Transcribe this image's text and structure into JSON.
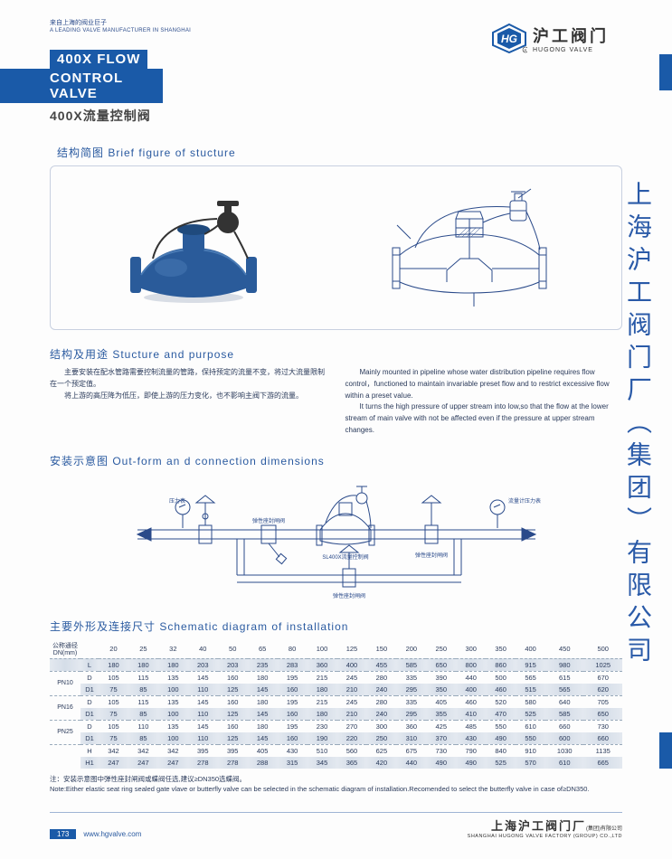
{
  "header": {
    "subtitle_cn": "来自上海的阀业巨子",
    "subtitle_en": "A LEADING VALVE MANUFACTURER IN SHANGHAI",
    "logo_cn": "沪工阀门",
    "logo_en": "HUGONG VALVE"
  },
  "title": {
    "line1": "400X FLOW",
    "line2": "CONTROL VALVE",
    "cn": "400X流量控制阀"
  },
  "sections": {
    "brief": "结构简图  Brief figure of stucture",
    "purpose": "结构及用途  Stucture and purpose",
    "outform": "安装示意图   Out-form an d connection dimensions",
    "schematic": "主要外形及连接尺寸   Schematic diagram of installation"
  },
  "purpose_text": {
    "cn1": "主要安装在配水管路需要控制流量的管路，保持预定的流量不变，将过大流量限制在一个预定值。",
    "cn2": "将上游的高压降为低压，即使上游的压力变化，也不影响主阀下游的流量。",
    "en1": "Mainly mounted in pipeline whose water distribution pipeline requires flow control，functioned to maintain invariable preset flow and to restrict excessive flow within a preset value.",
    "en2": "It turns the high pressure of upper stream into low,so that the flow at the lower stream of main valve with not be affected even if the pressure at upper stream changes."
  },
  "table": {
    "header_label": "公称通径\nDN(mm)",
    "sizes": [
      "20",
      "25",
      "32",
      "40",
      "50",
      "65",
      "80",
      "100",
      "125",
      "150",
      "200",
      "250",
      "300",
      "350",
      "400",
      "450",
      "500"
    ],
    "groups": [
      {
        "pn": "",
        "rows": [
          {
            "k": "L",
            "shade": true,
            "v": [
              "180",
              "180",
              "180",
              "203",
              "203",
              "235",
              "283",
              "360",
              "400",
              "455",
              "585",
              "650",
              "800",
              "860",
              "915",
              "980",
              "1025"
            ]
          }
        ]
      },
      {
        "pn": "PN10",
        "rows": [
          {
            "k": "D",
            "shade": false,
            "v": [
              "105",
              "115",
              "135",
              "145",
              "160",
              "180",
              "195",
              "215",
              "245",
              "280",
              "335",
              "390",
              "440",
              "500",
              "565",
              "615",
              "670"
            ]
          },
          {
            "k": "D1",
            "shade": true,
            "v": [
              "75",
              "85",
              "100",
              "110",
              "125",
              "145",
              "160",
              "180",
              "210",
              "240",
              "295",
              "350",
              "400",
              "460",
              "515",
              "565",
              "620"
            ]
          }
        ]
      },
      {
        "pn": "PN16",
        "rows": [
          {
            "k": "D",
            "shade": false,
            "v": [
              "105",
              "115",
              "135",
              "145",
              "160",
              "180",
              "195",
              "215",
              "245",
              "280",
              "335",
              "405",
              "460",
              "520",
              "580",
              "640",
              "705"
            ]
          },
          {
            "k": "D1",
            "shade": true,
            "v": [
              "75",
              "85",
              "100",
              "110",
              "125",
              "145",
              "160",
              "180",
              "210",
              "240",
              "295",
              "355",
              "410",
              "470",
              "525",
              "585",
              "650"
            ]
          }
        ]
      },
      {
        "pn": "PN25",
        "rows": [
          {
            "k": "D",
            "shade": false,
            "v": [
              "105",
              "110",
              "135",
              "145",
              "160",
              "180",
              "195",
              "230",
              "270",
              "300",
              "360",
              "425",
              "485",
              "550",
              "610",
              "660",
              "730"
            ]
          },
          {
            "k": "D1",
            "shade": true,
            "v": [
              "75",
              "85",
              "100",
              "110",
              "125",
              "145",
              "160",
              "190",
              "220",
              "250",
              "310",
              "370",
              "430",
              "490",
              "550",
              "600",
              "660"
            ]
          }
        ]
      },
      {
        "pn": "",
        "rows": [
          {
            "k": "H",
            "shade": false,
            "v": [
              "342",
              "342",
              "342",
              "395",
              "395",
              "405",
              "430",
              "510",
              "560",
              "625",
              "675",
              "730",
              "790",
              "840",
              "910",
              "1030",
              "1135"
            ]
          },
          {
            "k": "H1",
            "shade": true,
            "v": [
              "247",
              "247",
              "247",
              "278",
              "278",
              "288",
              "315",
              "345",
              "365",
              "420",
              "440",
              "490",
              "490",
              "525",
              "570",
              "610",
              "665"
            ]
          }
        ]
      }
    ]
  },
  "note": {
    "cn": "注：安装示意图中弹性座封闸阀或蝶阀任选,建议≥DN350选蝶阀。",
    "en": "Note:Either elastic seat ring sealed gate vlave or butterfly valve can be selected in the schematic diagram of installation.Recomended to select the butterfly valve in case of≥DN350."
  },
  "footer": {
    "page": "173",
    "url": "www.hgvalve.com",
    "company_cn": "上海沪工阀门厂",
    "company_suffix": "(集团)有限公司",
    "company_en": "SHANGHAI HUGONG VALVE FACTORY (GROUP) CO.,LTD"
  },
  "watermark": "上海沪工阀门厂（集团）有限公司",
  "colors": {
    "brand_blue": "#1a5aa8",
    "text_blue": "#2a5aa0",
    "valve_blue": "#2a5b9a"
  }
}
